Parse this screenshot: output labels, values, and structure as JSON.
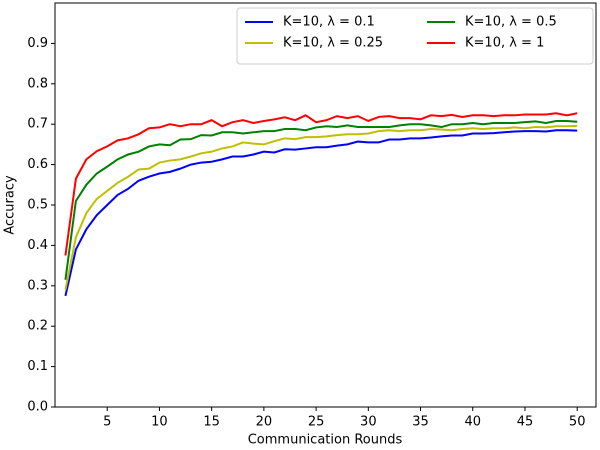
{
  "chart_data": {
    "type": "line",
    "x_label": "Communication Rounds",
    "y_label": "Accuracy",
    "x": [
      1,
      2,
      3,
      4,
      5,
      6,
      7,
      8,
      9,
      10,
      11,
      12,
      13,
      14,
      15,
      16,
      17,
      18,
      19,
      20,
      21,
      22,
      23,
      24,
      25,
      26,
      27,
      28,
      29,
      30,
      31,
      32,
      33,
      34,
      35,
      36,
      37,
      38,
      39,
      40,
      41,
      42,
      43,
      44,
      45,
      46,
      47,
      48,
      49,
      50
    ],
    "series": [
      {
        "name": "K=10, λ = 0.1",
        "color": "#0000ff",
        "values": [
          0.275,
          0.39,
          0.44,
          0.475,
          0.5,
          0.525,
          0.54,
          0.56,
          0.57,
          0.578,
          0.582,
          0.59,
          0.6,
          0.605,
          0.607,
          0.613,
          0.62,
          0.62,
          0.625,
          0.632,
          0.63,
          0.638,
          0.637,
          0.64,
          0.643,
          0.643,
          0.647,
          0.65,
          0.657,
          0.655,
          0.655,
          0.662,
          0.662,
          0.665,
          0.665,
          0.667,
          0.67,
          0.672,
          0.672,
          0.677,
          0.677,
          0.678,
          0.68,
          0.682,
          0.683,
          0.683,
          0.682,
          0.685,
          0.685,
          0.684
        ]
      },
      {
        "name": "K=10, λ = 0.25",
        "color": "#bfbf00",
        "values": [
          0.29,
          0.42,
          0.48,
          0.515,
          0.535,
          0.555,
          0.57,
          0.588,
          0.59,
          0.605,
          0.61,
          0.613,
          0.62,
          0.628,
          0.632,
          0.64,
          0.645,
          0.655,
          0.652,
          0.65,
          0.658,
          0.665,
          0.663,
          0.668,
          0.668,
          0.67,
          0.673,
          0.675,
          0.675,
          0.677,
          0.683,
          0.685,
          0.683,
          0.685,
          0.685,
          0.688,
          0.687,
          0.685,
          0.688,
          0.69,
          0.688,
          0.69,
          0.69,
          0.692,
          0.69,
          0.693,
          0.692,
          0.695,
          0.695,
          0.696
        ]
      },
      {
        "name": "K=10, λ = 0.5",
        "color": "#008000",
        "values": [
          0.315,
          0.51,
          0.55,
          0.578,
          0.595,
          0.613,
          0.625,
          0.632,
          0.645,
          0.65,
          0.648,
          0.662,
          0.663,
          0.673,
          0.672,
          0.68,
          0.68,
          0.677,
          0.68,
          0.683,
          0.683,
          0.688,
          0.688,
          0.685,
          0.692,
          0.695,
          0.693,
          0.697,
          0.693,
          0.693,
          0.693,
          0.693,
          0.697,
          0.7,
          0.7,
          0.697,
          0.693,
          0.7,
          0.7,
          0.703,
          0.7,
          0.703,
          0.703,
          0.703,
          0.705,
          0.707,
          0.703,
          0.708,
          0.708,
          0.706
        ]
      },
      {
        "name": "K=10, λ = 1",
        "color": "#ff0000",
        "values": [
          0.375,
          0.565,
          0.613,
          0.633,
          0.645,
          0.66,
          0.665,
          0.675,
          0.69,
          0.692,
          0.7,
          0.695,
          0.7,
          0.7,
          0.71,
          0.695,
          0.705,
          0.71,
          0.703,
          0.708,
          0.712,
          0.717,
          0.71,
          0.722,
          0.705,
          0.71,
          0.72,
          0.715,
          0.72,
          0.708,
          0.718,
          0.72,
          0.715,
          0.715,
          0.712,
          0.722,
          0.72,
          0.723,
          0.718,
          0.722,
          0.722,
          0.72,
          0.722,
          0.722,
          0.724,
          0.724,
          0.724,
          0.727,
          0.722,
          0.727
        ]
      }
    ],
    "xlim": [
      0,
      51.8
    ],
    "ylim": [
      0,
      1.0
    ],
    "xticks": [
      5,
      10,
      15,
      20,
      25,
      30,
      35,
      40,
      45,
      50
    ],
    "yticks": [
      {
        "value": 0,
        "label": "0.0"
      },
      0.1,
      0.2,
      0.3,
      0.4,
      0.5,
      0.6,
      0.7,
      0.8,
      0.9
    ],
    "legend_loc": "upper right",
    "grid": false
  }
}
